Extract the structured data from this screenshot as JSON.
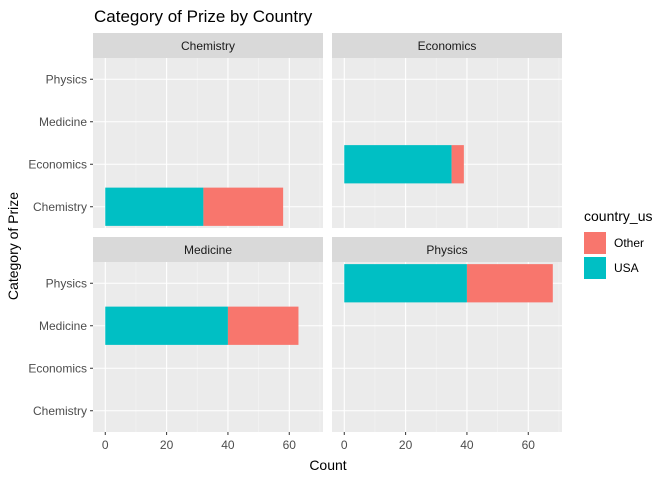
{
  "chart_data": {
    "type": "bar",
    "orientation": "horizontal",
    "stacked": true,
    "title": "Category of Prize by Country",
    "xlabel": "Count",
    "ylabel": "Category of Prize",
    "categories": [
      "Chemistry",
      "Economics",
      "Medicine",
      "Physics"
    ],
    "xlim": [
      -4,
      71
    ],
    "x_ticks": [
      0,
      20,
      40,
      60
    ],
    "grid": true,
    "legend": {
      "title": "country_us",
      "position": "right",
      "entries": [
        {
          "label": "Other",
          "color": "#F8766D"
        },
        {
          "label": "USA",
          "color": "#00BFC4"
        }
      ]
    },
    "facets": [
      {
        "label": "Chemistry",
        "bars": [
          {
            "category": "Chemistry",
            "USA": 32,
            "Other": 26
          }
        ]
      },
      {
        "label": "Economics",
        "bars": [
          {
            "category": "Economics",
            "USA": 35,
            "Other": 4
          }
        ]
      },
      {
        "label": "Medicine",
        "bars": [
          {
            "category": "Medicine",
            "USA": 40,
            "Other": 23
          }
        ]
      },
      {
        "label": "Physics",
        "bars": [
          {
            "category": "Physics",
            "USA": 40,
            "Other": 28
          }
        ]
      }
    ]
  }
}
